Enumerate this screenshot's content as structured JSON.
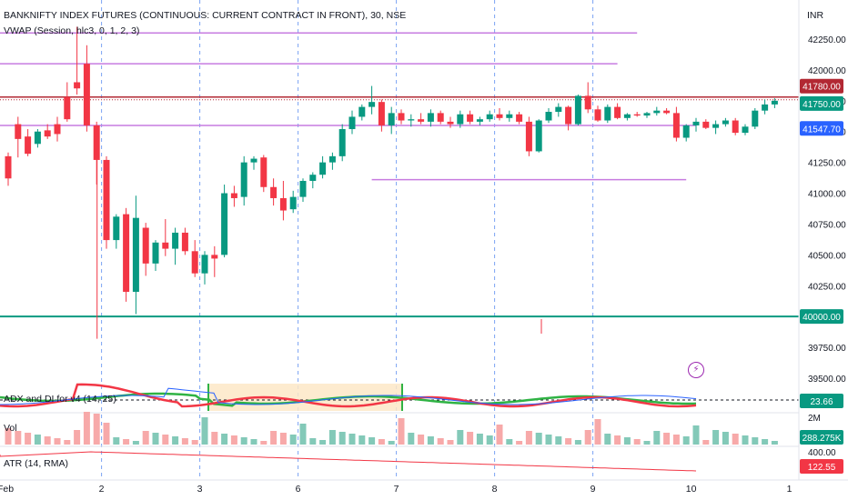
{
  "header": {
    "symbol_line": "BANKNIFTY INDEX FUTURES (CONTINUOUS: CURRENT CONTRACT IN FRONT), 30, NSE",
    "indicator_line": "VWAP (Session, hlc3, 0, 1, 2, 3)",
    "currency": "INR"
  },
  "colors": {
    "up": "#089981",
    "down": "#f23645",
    "level_purple": "#c77ce0",
    "level_green": "#089981",
    "red_line": "#b22833",
    "adx_green": "#2fb344",
    "adx_red": "#f23645",
    "adx_blue": "#2962ff",
    "vol_up": "#83c9b8",
    "vol_down": "#f7a9a9",
    "atr": "#f23645",
    "tag_blue": "#2962ff",
    "grid": "#e0e3eb"
  },
  "panes": {
    "adx": {
      "label": "ADX and DI for v4 (14, 25)",
      "value": "23.66"
    },
    "volume": {
      "label": "Vol",
      "value": "288.275K",
      "scale_top": "2M"
    },
    "atr": {
      "label": "ATR (14, RMA)",
      "value": "122.55",
      "scale_top": "400.00"
    }
  },
  "price_tags": {
    "red_level": "41780.00",
    "last_price": "41750.00",
    "vwap": "41547.70",
    "green_level": "40000.00"
  },
  "chart_data": {
    "type": "candlestick",
    "title": "BANKNIFTY INDEX FUTURES (CONTINUOUS: CURRENT CONTRACT IN FRONT), 30, NSE",
    "ylim": [
      39450,
      42450
    ],
    "y_ticks": [
      42250,
      42000,
      41750,
      41500,
      41250,
      41000,
      40750,
      40500,
      40250,
      39750,
      39500
    ],
    "y_tick_labels": [
      "42250.00",
      "42000.00",
      "41750.00",
      "41500.00",
      "41250.00",
      "41000.00",
      "40750.00",
      "40500.00",
      "40250.00",
      "39750.00",
      "39500.00"
    ],
    "x_ticks": [
      {
        "label": "Feb",
        "slot": -1
      },
      {
        "label": "2",
        "slot": 10
      },
      {
        "label": "3",
        "slot": 20
      },
      {
        "label": "6",
        "slot": 30
      },
      {
        "label": "7",
        "slot": 40
      },
      {
        "label": "8",
        "slot": 50
      },
      {
        "label": "9",
        "slot": 60
      },
      {
        "label": "10",
        "slot": 70
      },
      {
        "label": "1",
        "slot": 80
      }
    ],
    "day_separators": [
      10,
      20,
      30,
      40,
      50,
      60
    ],
    "levels": [
      {
        "value": 42300,
        "from": -1,
        "to": 64,
        "color": "level_purple"
      },
      {
        "value": 42050,
        "from": -1,
        "to": 62,
        "color": "level_purple"
      },
      {
        "value": 41780,
        "from": -1,
        "to": 80,
        "color": "red_line"
      },
      {
        "value": 41550,
        "from": -1,
        "to": 70,
        "color": "level_purple"
      },
      {
        "value": 41110,
        "from": 37,
        "to": 69,
        "color": "level_purple"
      },
      {
        "value": 40000,
        "from": -1,
        "to": 80,
        "color": "level_green"
      }
    ],
    "candles": [
      [
        41300,
        41330,
        41060,
        41120
      ],
      [
        41560,
        41620,
        41290,
        41440
      ],
      [
        41460,
        41520,
        41300,
        41320
      ],
      [
        41400,
        41520,
        41370,
        41500
      ],
      [
        41510,
        41560,
        41440,
        41460
      ],
      [
        41560,
        41620,
        41420,
        41480
      ],
      [
        41780,
        41900,
        41580,
        41600
      ],
      [
        41900,
        42350,
        41800,
        41850
      ],
      [
        42050,
        42200,
        41500,
        41550
      ],
      [
        41550,
        41580,
        41070,
        41270
      ],
      [
        41270,
        41300,
        40550,
        40620
      ],
      [
        40620,
        40830,
        40550,
        40810
      ],
      [
        40830,
        40880,
        40120,
        40200
      ],
      [
        40200,
        40980,
        40020,
        40800
      ],
      [
        40720,
        40760,
        40330,
        40430
      ],
      [
        40430,
        40620,
        40370,
        40600
      ],
      [
        40600,
        40790,
        40490,
        40550
      ],
      [
        40550,
        40720,
        40420,
        40680
      ],
      [
        40680,
        40720,
        40500,
        40530
      ],
      [
        40530,
        40620,
        40320,
        40350
      ],
      [
        40350,
        40530,
        40260,
        40500
      ],
      [
        40500,
        40570,
        40320,
        40470
      ],
      [
        40500,
        41070,
        40480,
        41000
      ],
      [
        41000,
        41060,
        40890,
        40960
      ],
      [
        40970,
        41300,
        40900,
        41250
      ],
      [
        41250,
        41300,
        41190,
        41280
      ],
      [
        41290,
        41310,
        41010,
        41050
      ],
      [
        41050,
        41120,
        40900,
        40960
      ],
      [
        40960,
        41100,
        40780,
        40860
      ],
      [
        40870,
        41020,
        40840,
        40970
      ],
      [
        40970,
        41120,
        40930,
        41100
      ],
      [
        41100,
        41170,
        41040,
        41150
      ],
      [
        41150,
        41300,
        41120,
        41250
      ],
      [
        41250,
        41330,
        41190,
        41300
      ],
      [
        41300,
        41560,
        41260,
        41520
      ],
      [
        41520,
        41670,
        41480,
        41620
      ],
      [
        41620,
        41720,
        41590,
        41700
      ],
      [
        41700,
        41870,
        41640,
        41740
      ],
      [
        41740,
        41760,
        41500,
        41550
      ],
      [
        41550,
        41700,
        41480,
        41650
      ],
      [
        41650,
        41680,
        41560,
        41590
      ],
      [
        41590,
        41640,
        41540,
        41600
      ],
      [
        41600,
        41650,
        41560,
        41580
      ],
      [
        41580,
        41680,
        41540,
        41650
      ],
      [
        41650,
        41670,
        41560,
        41580
      ],
      [
        41580,
        41620,
        41530,
        41560
      ],
      [
        41560,
        41670,
        41530,
        41640
      ],
      [
        41640,
        41670,
        41560,
        41580
      ],
      [
        41580,
        41620,
        41550,
        41600
      ],
      [
        41600,
        41670,
        41580,
        41640
      ],
      [
        41640,
        41690,
        41590,
        41610
      ],
      [
        41610,
        41670,
        41580,
        41640
      ],
      [
        41640,
        41660,
        41560,
        41580
      ],
      [
        41580,
        41620,
        41300,
        41340
      ],
      [
        41340,
        41600,
        41330,
        41590
      ],
      [
        41590,
        41690,
        41570,
        41660
      ],
      [
        41660,
        41730,
        41620,
        41700
      ],
      [
        41700,
        41710,
        41510,
        41560
      ],
      [
        41560,
        41800,
        41550,
        41790
      ],
      [
        41790,
        41900,
        41650,
        41680
      ],
      [
        41680,
        41710,
        41580,
        41590
      ],
      [
        41590,
        41720,
        41570,
        41700
      ],
      [
        41700,
        41730,
        41600,
        41610
      ],
      [
        41610,
        41650,
        41590,
        41640
      ],
      [
        41640,
        41660,
        41620,
        41630
      ],
      [
        41630,
        41660,
        41610,
        41650
      ],
      [
        41650,
        41700,
        41630,
        41670
      ],
      [
        41670,
        41690,
        41640,
        41650
      ],
      [
        41650,
        41700,
        41420,
        41450
      ],
      [
        41450,
        41560,
        41420,
        41550
      ],
      [
        41550,
        41610,
        41500,
        41580
      ],
      [
        41580,
        41600,
        41520,
        41530
      ],
      [
        41530,
        41590,
        41480,
        41560
      ],
      [
        41560,
        41610,
        41540,
        41590
      ],
      [
        41590,
        41610,
        41470,
        41490
      ],
      [
        41490,
        41560,
        41470,
        41540
      ],
      [
        41540,
        41690,
        41520,
        41670
      ],
      [
        41670,
        41760,
        41640,
        41720
      ],
      [
        41720,
        41770,
        41690,
        41750
      ]
    ],
    "volume_note": "volume bars shown without axis values",
    "volume_scale": [
      "2M"
    ],
    "atr_last": 122.55,
    "adx_last": 23.66
  }
}
